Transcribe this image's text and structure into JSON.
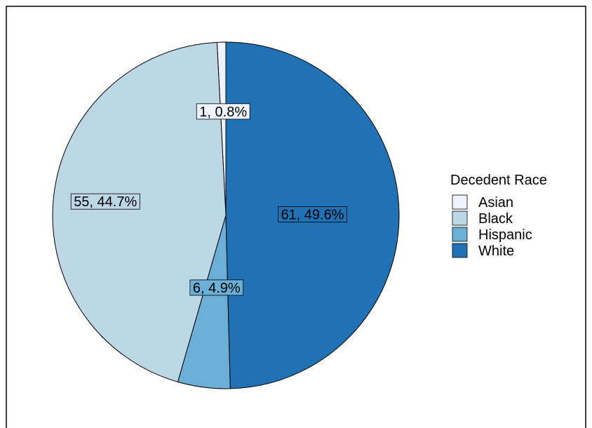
{
  "chart_data": {
    "type": "pie",
    "legend_title": "Decedent Race",
    "legend_position": "right",
    "slices": [
      {
        "category": "Asian",
        "value": 1,
        "percent": 0.8,
        "label": "1, 0.8%",
        "color": "#eff3ff"
      },
      {
        "category": "Black",
        "value": 55,
        "percent": 44.7,
        "label": "55, 44.7%",
        "color": "#bdd7e7"
      },
      {
        "category": "Hispanic",
        "value": 6,
        "percent": 4.9,
        "label": "6, 4.9%",
        "color": "#6baed6"
      },
      {
        "category": "White",
        "value": 61,
        "percent": 49.6,
        "label": "61, 49.6%",
        "color": "#2171b5"
      }
    ]
  }
}
